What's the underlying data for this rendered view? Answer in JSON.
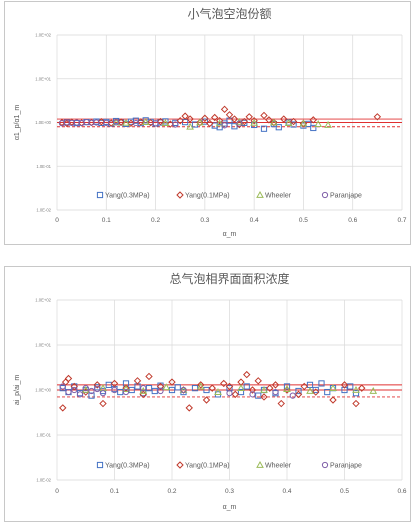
{
  "charts": [
    {
      "type": "scatter",
      "title": "小气泡空泡份额",
      "xlabel": "α_m",
      "ylabel": "α1_p/α1_m",
      "xlim": [
        0,
        0.7
      ],
      "xticks": [
        "0",
        "0.1",
        "0.2",
        "0.3",
        "0.4",
        "0.5",
        "0.6",
        "0.7"
      ],
      "ylog": true,
      "ylim": [
        0.01,
        100
      ],
      "yticks": [
        "1.0E-02",
        "1.0E-01",
        "1.0E+00",
        "1.0E+01",
        "1.0E+02"
      ],
      "reference_lines": [
        {
          "y": 1.0,
          "style": "solid"
        },
        {
          "y": 1.2,
          "style": "solid"
        },
        {
          "y": 0.8,
          "style": "dashed"
        }
      ],
      "legend_position": "bottom",
      "series": [
        {
          "name": "Yang(0.3MPa)",
          "marker": "square",
          "color": "#4472c4",
          "points": [
            [
              0.02,
              1.0
            ],
            [
              0.04,
              0.97
            ],
            [
              0.06,
              1.02
            ],
            [
              0.08,
              1.05
            ],
            [
              0.09,
              0.98
            ],
            [
              0.1,
              1.03
            ],
            [
              0.11,
              0.95
            ],
            [
              0.12,
              1.08
            ],
            [
              0.13,
              1.0
            ],
            [
              0.14,
              0.93
            ],
            [
              0.15,
              1.04
            ],
            [
              0.16,
              1.1
            ],
            [
              0.17,
              0.97
            ],
            [
              0.18,
              1.12
            ],
            [
              0.19,
              1.03
            ],
            [
              0.2,
              0.95
            ],
            [
              0.21,
              1.0
            ],
            [
              0.22,
              1.06
            ],
            [
              0.24,
              0.98
            ],
            [
              0.26,
              1.02
            ],
            [
              0.28,
              0.9
            ],
            [
              0.3,
              1.05
            ],
            [
              0.32,
              0.85
            ],
            [
              0.33,
              0.78
            ],
            [
              0.34,
              0.95
            ],
            [
              0.35,
              1.1
            ],
            [
              0.36,
              0.82
            ],
            [
              0.38,
              0.98
            ],
            [
              0.4,
              0.88
            ],
            [
              0.42,
              0.72
            ],
            [
              0.44,
              0.92
            ],
            [
              0.45,
              0.78
            ],
            [
              0.47,
              1.0
            ],
            [
              0.48,
              0.9
            ],
            [
              0.5,
              0.85
            ],
            [
              0.51,
              0.93
            ],
            [
              0.52,
              0.75
            ]
          ]
        },
        {
          "name": "Yang(0.1MPa)",
          "marker": "diamond",
          "color": "#c0392b",
          "points": [
            [
              0.01,
              1.0
            ],
            [
              0.02,
              0.95
            ],
            [
              0.03,
              1.02
            ],
            [
              0.05,
              0.98
            ],
            [
              0.07,
              1.0
            ],
            [
              0.09,
              1.04
            ],
            [
              0.11,
              0.97
            ],
            [
              0.13,
              1.02
            ],
            [
              0.15,
              0.96
            ],
            [
              0.17,
              1.03
            ],
            [
              0.19,
              0.99
            ],
            [
              0.21,
              1.05
            ],
            [
              0.23,
              0.92
            ],
            [
              0.25,
              1.1
            ],
            [
              0.26,
              1.4
            ],
            [
              0.27,
              1.2
            ],
            [
              0.29,
              1.0
            ],
            [
              0.3,
              1.25
            ],
            [
              0.31,
              0.95
            ],
            [
              0.32,
              1.3
            ],
            [
              0.33,
              1.1
            ],
            [
              0.34,
              2.0
            ],
            [
              0.35,
              1.5
            ],
            [
              0.36,
              1.2
            ],
            [
              0.37,
              0.9
            ],
            [
              0.38,
              1.05
            ],
            [
              0.39,
              1.35
            ],
            [
              0.4,
              1.1
            ],
            [
              0.42,
              1.45
            ],
            [
              0.43,
              1.15
            ],
            [
              0.44,
              1.0
            ],
            [
              0.46,
              1.2
            ],
            [
              0.48,
              1.05
            ],
            [
              0.5,
              0.95
            ],
            [
              0.52,
              1.15
            ],
            [
              0.65,
              1.35
            ]
          ]
        },
        {
          "name": "Wheeler",
          "marker": "triangle",
          "color": "#9bbb59",
          "points": [
            [
              0.12,
              1.0
            ],
            [
              0.14,
              0.98
            ],
            [
              0.18,
              1.02
            ],
            [
              0.22,
              0.97
            ],
            [
              0.27,
              0.8
            ],
            [
              0.29,
              1.0
            ],
            [
              0.33,
              0.95
            ],
            [
              0.37,
              1.03
            ],
            [
              0.4,
              0.98
            ],
            [
              0.44,
              1.0
            ],
            [
              0.47,
              0.97
            ],
            [
              0.5,
              0.95
            ],
            [
              0.53,
              0.92
            ],
            [
              0.55,
              0.88
            ]
          ]
        },
        {
          "name": "Paranjape",
          "marker": "circle",
          "color": "#7f5fa8",
          "points": [
            [
              0.01,
              0.96
            ],
            [
              0.02,
              1.01
            ],
            [
              0.03,
              0.98
            ],
            [
              0.04,
              1.0
            ],
            [
              0.05,
              0.97
            ],
            [
              0.06,
              1.02
            ],
            [
              0.07,
              0.99
            ],
            [
              0.08,
              1.0
            ],
            [
              0.1,
              0.98
            ],
            [
              0.12,
              1.01
            ],
            [
              0.16,
              0.97
            ],
            [
              0.2,
              0.96
            ],
            [
              0.24,
              0.9
            ],
            [
              0.34,
              0.86
            ],
            [
              0.37,
              0.95
            ]
          ]
        }
      ]
    },
    {
      "type": "scatter",
      "title": "总气泡相界面面积浓度",
      "xlabel": "α_m",
      "ylabel": "ai_p/ai_m",
      "xlim": [
        0,
        0.6
      ],
      "xticks": [
        "0",
        "0.1",
        "0.2",
        "0.3",
        "0.4",
        "0.5",
        "0.6"
      ],
      "ylog": true,
      "ylim": [
        0.01,
        100
      ],
      "yticks": [
        "1.0E-02",
        "1.0E-01",
        "1.0E+00",
        "1.0E+01",
        "1.0E+02"
      ],
      "reference_lines": [
        {
          "y": 1.0,
          "style": "solid"
        },
        {
          "y": 1.3,
          "style": "solid"
        },
        {
          "y": 0.7,
          "style": "dashed"
        }
      ],
      "legend_position": "bottom",
      "series": [
        {
          "name": "Yang(0.3MPa)",
          "marker": "square",
          "color": "#4472c4",
          "points": [
            [
              0.01,
              1.1
            ],
            [
              0.02,
              0.9
            ],
            [
              0.03,
              1.2
            ],
            [
              0.04,
              0.85
            ],
            [
              0.05,
              1.0
            ],
            [
              0.06,
              0.75
            ],
            [
              0.07,
              1.15
            ],
            [
              0.08,
              0.95
            ],
            [
              0.09,
              1.3
            ],
            [
              0.1,
              1.05
            ],
            [
              0.11,
              0.9
            ],
            [
              0.12,
              1.4
            ],
            [
              0.13,
              1.0
            ],
            [
              0.14,
              1.2
            ],
            [
              0.15,
              0.85
            ],
            [
              0.16,
              1.1
            ],
            [
              0.17,
              0.95
            ],
            [
              0.18,
              1.25
            ],
            [
              0.2,
              1.0
            ],
            [
              0.21,
              1.15
            ],
            [
              0.22,
              0.9
            ],
            [
              0.24,
              1.1
            ],
            [
              0.26,
              1.0
            ],
            [
              0.28,
              0.8
            ],
            [
              0.3,
              1.1
            ],
            [
              0.32,
              0.9
            ],
            [
              0.33,
              1.2
            ],
            [
              0.35,
              0.75
            ],
            [
              0.36,
              1.0
            ],
            [
              0.38,
              0.85
            ],
            [
              0.4,
              1.2
            ],
            [
              0.42,
              0.95
            ],
            [
              0.44,
              1.3
            ],
            [
              0.45,
              1.0
            ],
            [
              0.46,
              1.4
            ],
            [
              0.47,
              0.9
            ],
            [
              0.48,
              1.1
            ],
            [
              0.5,
              1.0
            ],
            [
              0.51,
              1.2
            ],
            [
              0.52,
              0.85
            ]
          ]
        },
        {
          "name": "Yang(0.1MPa)",
          "marker": "diamond",
          "color": "#c0392b",
          "points": [
            [
              0.01,
              0.4
            ],
            [
              0.015,
              1.5
            ],
            [
              0.02,
              1.8
            ],
            [
              0.03,
              1.2
            ],
            [
              0.05,
              0.9
            ],
            [
              0.07,
              1.3
            ],
            [
              0.08,
              0.5
            ],
            [
              0.1,
              1.4
            ],
            [
              0.12,
              1.1
            ],
            [
              0.14,
              1.6
            ],
            [
              0.15,
              0.8
            ],
            [
              0.16,
              2.0
            ],
            [
              0.18,
              1.2
            ],
            [
              0.2,
              1.5
            ],
            [
              0.22,
              1.0
            ],
            [
              0.23,
              0.4
            ],
            [
              0.25,
              1.3
            ],
            [
              0.26,
              0.6
            ],
            [
              0.27,
              1.1
            ],
            [
              0.29,
              1.4
            ],
            [
              0.3,
              1.2
            ],
            [
              0.31,
              0.8
            ],
            [
              0.32,
              1.5
            ],
            [
              0.33,
              2.2
            ],
            [
              0.34,
              1.0
            ],
            [
              0.35,
              1.6
            ],
            [
              0.36,
              0.7
            ],
            [
              0.37,
              1.1
            ],
            [
              0.38,
              1.3
            ],
            [
              0.39,
              0.5
            ],
            [
              0.4,
              1.0
            ],
            [
              0.42,
              0.8
            ],
            [
              0.43,
              1.2
            ],
            [
              0.45,
              0.9
            ],
            [
              0.48,
              0.6
            ],
            [
              0.5,
              1.3
            ],
            [
              0.52,
              0.5
            ],
            [
              0.53,
              1.1
            ]
          ]
        },
        {
          "name": "Wheeler",
          "marker": "triangle",
          "color": "#9bbb59",
          "points": [
            [
              0.05,
              1.0
            ],
            [
              0.08,
              1.1
            ],
            [
              0.12,
              1.05
            ],
            [
              0.15,
              0.95
            ],
            [
              0.19,
              1.15
            ],
            [
              0.22,
              1.0
            ],
            [
              0.25,
              1.2
            ],
            [
              0.28,
              0.9
            ],
            [
              0.32,
              1.1
            ],
            [
              0.36,
              1.0
            ],
            [
              0.4,
              1.05
            ],
            [
              0.44,
              0.95
            ],
            [
              0.48,
              1.1
            ],
            [
              0.52,
              1.0
            ],
            [
              0.55,
              0.95
            ]
          ]
        },
        {
          "name": "Paranjape",
          "marker": "circle",
          "color": "#7f5fa8",
          "points": [
            [
              0.01,
              1.2
            ],
            [
              0.02,
              0.9
            ],
            [
              0.03,
              1.0
            ],
            [
              0.04,
              0.8
            ],
            [
              0.05,
              1.1
            ],
            [
              0.06,
              0.95
            ],
            [
              0.07,
              1.05
            ],
            [
              0.08,
              0.85
            ],
            [
              0.1,
              1.0
            ],
            [
              0.12,
              0.9
            ],
            [
              0.15,
              1.1
            ],
            [
              0.18,
              0.95
            ],
            [
              0.22,
              1.0
            ],
            [
              0.3,
              0.85
            ],
            [
              0.34,
              0.8
            ],
            [
              0.38,
              0.9
            ],
            [
              0.41,
              0.75
            ]
          ]
        }
      ]
    }
  ]
}
